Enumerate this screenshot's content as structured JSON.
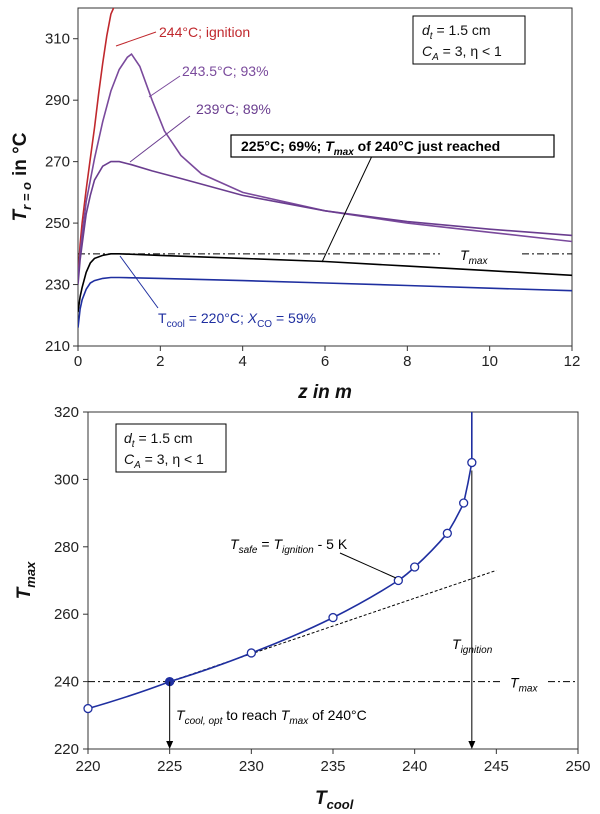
{
  "chart_data": [
    {
      "type": "line",
      "xlabel": "z in m",
      "ylabel": "T r = o in °C",
      "ylabel_main": "T",
      "ylabel_sub": "r = o",
      "ylabel_unit": "in °C",
      "xlim": [
        0,
        12
      ],
      "ylim": [
        210,
        320
      ],
      "xticks": [
        0,
        2,
        4,
        6,
        8,
        10,
        12
      ],
      "yticks": [
        210,
        230,
        250,
        270,
        290,
        310
      ],
      "grid": false,
      "box_lines": [
        "d t = 1.5 cm",
        "C A = 3, η < 1"
      ],
      "series": [
        {
          "name": "244°C; ignition",
          "color": "#c0282d",
          "x": [
            0,
            0.05,
            0.1,
            0.2,
            0.3,
            0.4,
            0.5,
            0.6,
            0.7,
            0.8,
            0.9,
            1.0
          ],
          "y": [
            232,
            243,
            250,
            261,
            271,
            281,
            292,
            302,
            311,
            318,
            321,
            322
          ]
        },
        {
          "name": "243.5°C; 93%",
          "color": "#7a4a9c",
          "x": [
            0,
            0.05,
            0.1,
            0.2,
            0.4,
            0.6,
            0.8,
            1.0,
            1.2,
            1.3,
            1.5,
            1.8,
            2.1,
            2.5,
            3,
            4,
            6,
            8,
            10,
            12
          ],
          "y": [
            232,
            240,
            246,
            257,
            271,
            283,
            293,
            300,
            304,
            305,
            301,
            290,
            280,
            272,
            266,
            260,
            254,
            250,
            247,
            244
          ]
        },
        {
          "name": "239°C; 89%",
          "color": "#6a3d8f",
          "x": [
            0,
            0.05,
            0.1,
            0.2,
            0.3,
            0.4,
            0.6,
            0.8,
            1.0,
            1.3,
            1.8,
            2.5,
            4,
            6,
            8,
            10,
            12
          ],
          "y": [
            230,
            238,
            243,
            253,
            259,
            264,
            268.5,
            270,
            270,
            269,
            267,
            264.5,
            259,
            254,
            250.5,
            248,
            246
          ]
        },
        {
          "name": "225°C; 69%",
          "color": "#000000",
          "x": [
            0,
            0.05,
            0.1,
            0.2,
            0.3,
            0.4,
            0.6,
            0.8,
            1.0,
            2,
            4,
            6,
            8,
            10,
            12
          ],
          "y": [
            221,
            226,
            229,
            234,
            237,
            238.5,
            239.5,
            240,
            240,
            239.5,
            238.5,
            237.5,
            236,
            234.5,
            233
          ]
        },
        {
          "name": "Tcool = 220°C; XCO = 59%",
          "color": "#1f2fa0",
          "x": [
            0,
            0.05,
            0.1,
            0.2,
            0.3,
            0.4,
            0.6,
            0.8,
            1.0,
            2,
            4,
            6,
            8,
            10,
            12
          ],
          "y": [
            216,
            222,
            225,
            228.5,
            230.5,
            231.3,
            232,
            232.3,
            232.3,
            232,
            231.3,
            230.5,
            229.7,
            228.8,
            228
          ]
        }
      ],
      "reference_line": {
        "label_main": "T",
        "label_sub": "max",
        "y": 240,
        "color": "#000000"
      },
      "annotations": [
        {
          "text": "244°C; ignition",
          "color": "#c0282d"
        },
        {
          "text": "243.5°C; 93%",
          "color": "#7a4a9c"
        },
        {
          "text": "239°C; 89%",
          "color": "#6a3d8f"
        },
        {
          "parts": [
            "225°C; 69%; ",
            "T",
            "max",
            " of 240°C just reached"
          ],
          "color": "#000000",
          "boxed": true
        },
        {
          "parts": [
            "T",
            "cool",
            " = 220°C; ",
            "X",
            "CO",
            " = 59%"
          ],
          "color": "#1f2fa0"
        }
      ]
    },
    {
      "type": "scatter",
      "xlabel": "T cool",
      "xlabel_main": "T",
      "xlabel_sub": "cool",
      "ylabel": "T max",
      "ylabel_main": "T",
      "ylabel_sub": "max",
      "xlim": [
        220,
        250
      ],
      "ylim": [
        220,
        320
      ],
      "xticks": [
        220,
        225,
        230,
        235,
        240,
        245,
        250
      ],
      "yticks": [
        220,
        240,
        260,
        280,
        300,
        320
      ],
      "grid": false,
      "box_lines": [
        "d t = 1.5 cm",
        "C A = 3, η < 1"
      ],
      "series": [
        {
          "name": "Tmax vs Tcool",
          "color": "#1f2fa0",
          "x": [
            220,
            225,
            230,
            235,
            239,
            240,
            242,
            243,
            243.5
          ],
          "y": [
            232,
            240,
            248.5,
            259,
            270,
            274,
            284,
            293,
            305
          ],
          "curve_end": [
            243.5,
            320
          ]
        }
      ],
      "highlight_point": {
        "x": 225,
        "y": 240
      },
      "tangent_line": {
        "x": [
          225,
          245
        ],
        "y": [
          240,
          273
        ]
      },
      "reference_line": {
        "label_main": "T",
        "label_sub": "max",
        "y": 240
      },
      "annotations": [
        {
          "parts": [
            "T",
            "safe",
            " = ",
            "T",
            "ignition",
            " - 5 K"
          ]
        },
        {
          "parts": [
            "T",
            "ignition"
          ]
        },
        {
          "parts": [
            "T",
            "cool, opt",
            " to reach ",
            "T",
            "max",
            " of 240°C"
          ]
        }
      ]
    }
  ]
}
